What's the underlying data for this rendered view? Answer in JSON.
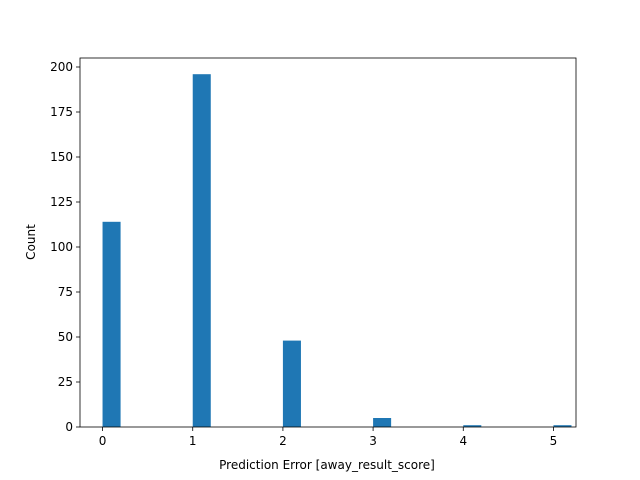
{
  "chart_data": {
    "type": "bar",
    "title": "",
    "xlabel": "Prediction Error [away_result_score]",
    "ylabel": "Count",
    "xlim": [
      -0.25,
      5.25
    ],
    "ylim": [
      0,
      205
    ],
    "xticks": [
      0,
      1,
      2,
      3,
      4,
      5
    ],
    "yticks": [
      0,
      25,
      50,
      75,
      100,
      125,
      150,
      175,
      200
    ],
    "grid": false,
    "bin_width": 0.2,
    "bars": [
      {
        "x": 0,
        "value": 114
      },
      {
        "x": 1,
        "value": 196
      },
      {
        "x": 2,
        "value": 48
      },
      {
        "x": 3,
        "value": 5
      },
      {
        "x": 4,
        "value": 1
      },
      {
        "x": 5,
        "value": 1
      }
    ],
    "bar_color": "#1f77b4"
  }
}
